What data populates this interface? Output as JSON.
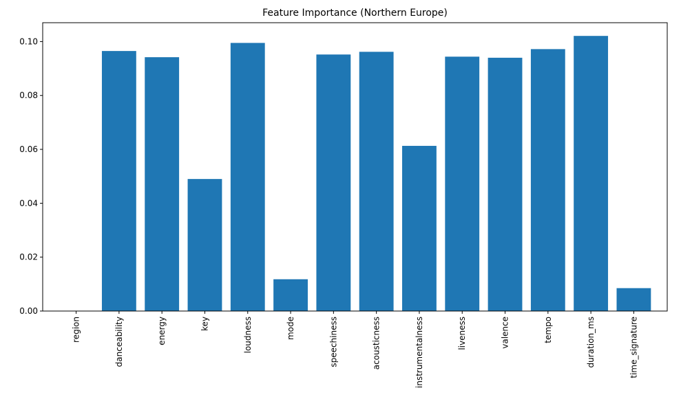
{
  "chart_data": {
    "type": "bar",
    "title": "Feature Importance (Northern Europe)",
    "xlabel": "",
    "ylabel": "",
    "categories": [
      "region",
      "danceability",
      "energy",
      "key",
      "loudness",
      "mode",
      "speechiness",
      "acousticness",
      "instrumentalness",
      "liveness",
      "valence",
      "tempo",
      "duration_ms",
      "time_signature"
    ],
    "values": [
      0.0,
      0.0965,
      0.0942,
      0.049,
      0.0995,
      0.0118,
      0.0952,
      0.0962,
      0.0613,
      0.0944,
      0.094,
      0.0972,
      0.1021,
      0.0085
    ],
    "ylim": [
      0,
      0.107
    ],
    "yticks": [
      "0.00",
      "0.02",
      "0.04",
      "0.06",
      "0.08",
      "0.10"
    ],
    "bar_color": "#1f77b4",
    "grid": false,
    "legend": "none"
  }
}
